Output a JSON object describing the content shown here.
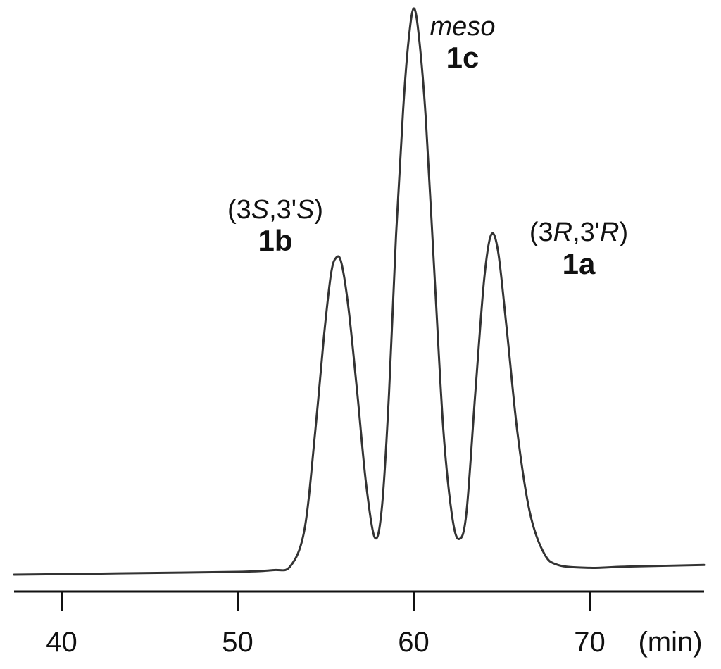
{
  "chart_data": {
    "type": "line",
    "title": "",
    "xlabel": "",
    "ylabel": "",
    "x_unit_label": "(min)",
    "xlim": [
      37.3,
      76.5
    ],
    "ylim": [
      0,
      100
    ],
    "x_ticks": [
      40,
      50,
      60,
      70
    ],
    "x_tick_labels": [
      "40",
      "50",
      "60",
      "70"
    ],
    "grid": false,
    "legend": "none",
    "line_color": "#333333",
    "baseline": 0.3,
    "series": [
      {
        "x": [
          37.3,
          40,
          45,
          50,
          52,
          53,
          53.8,
          54.4,
          54.9,
          55.3,
          55.6,
          55.9,
          56.3,
          56.8,
          57.3,
          57.8,
          58.2,
          58.6,
          59.0,
          59.4,
          59.7,
          60.0,
          60.3,
          60.7,
          61.2,
          61.7,
          62.2,
          62.6,
          63.0,
          63.5,
          64.0,
          64.4,
          64.8,
          65.3,
          65.9,
          66.6,
          67.4,
          68.2,
          70,
          72,
          76.5
        ],
        "y": [
          0.0,
          0.1,
          0.3,
          0.5,
          0.8,
          1.5,
          8,
          25,
          42,
          53,
          56,
          55,
          47,
          32,
          16,
          6.5,
          12,
          32,
          60,
          82,
          94,
          100,
          95,
          80,
          52,
          25,
          10,
          6.3,
          11,
          32,
          52,
          60,
          57,
          43,
          25,
          11,
          3.8,
          1.7,
          1.2,
          1.4,
          1.7
        ]
      }
    ],
    "annotations": [
      {
        "id": "1b",
        "line1": "(3S,3'S)",
        "line2": "1b",
        "x": 55.6
      },
      {
        "id": "1c",
        "line1": "meso",
        "line2": "1c",
        "x": 60.0
      },
      {
        "id": "1a",
        "line1": "(3R,3'R)",
        "line2": "1a",
        "x": 64.4
      }
    ]
  }
}
